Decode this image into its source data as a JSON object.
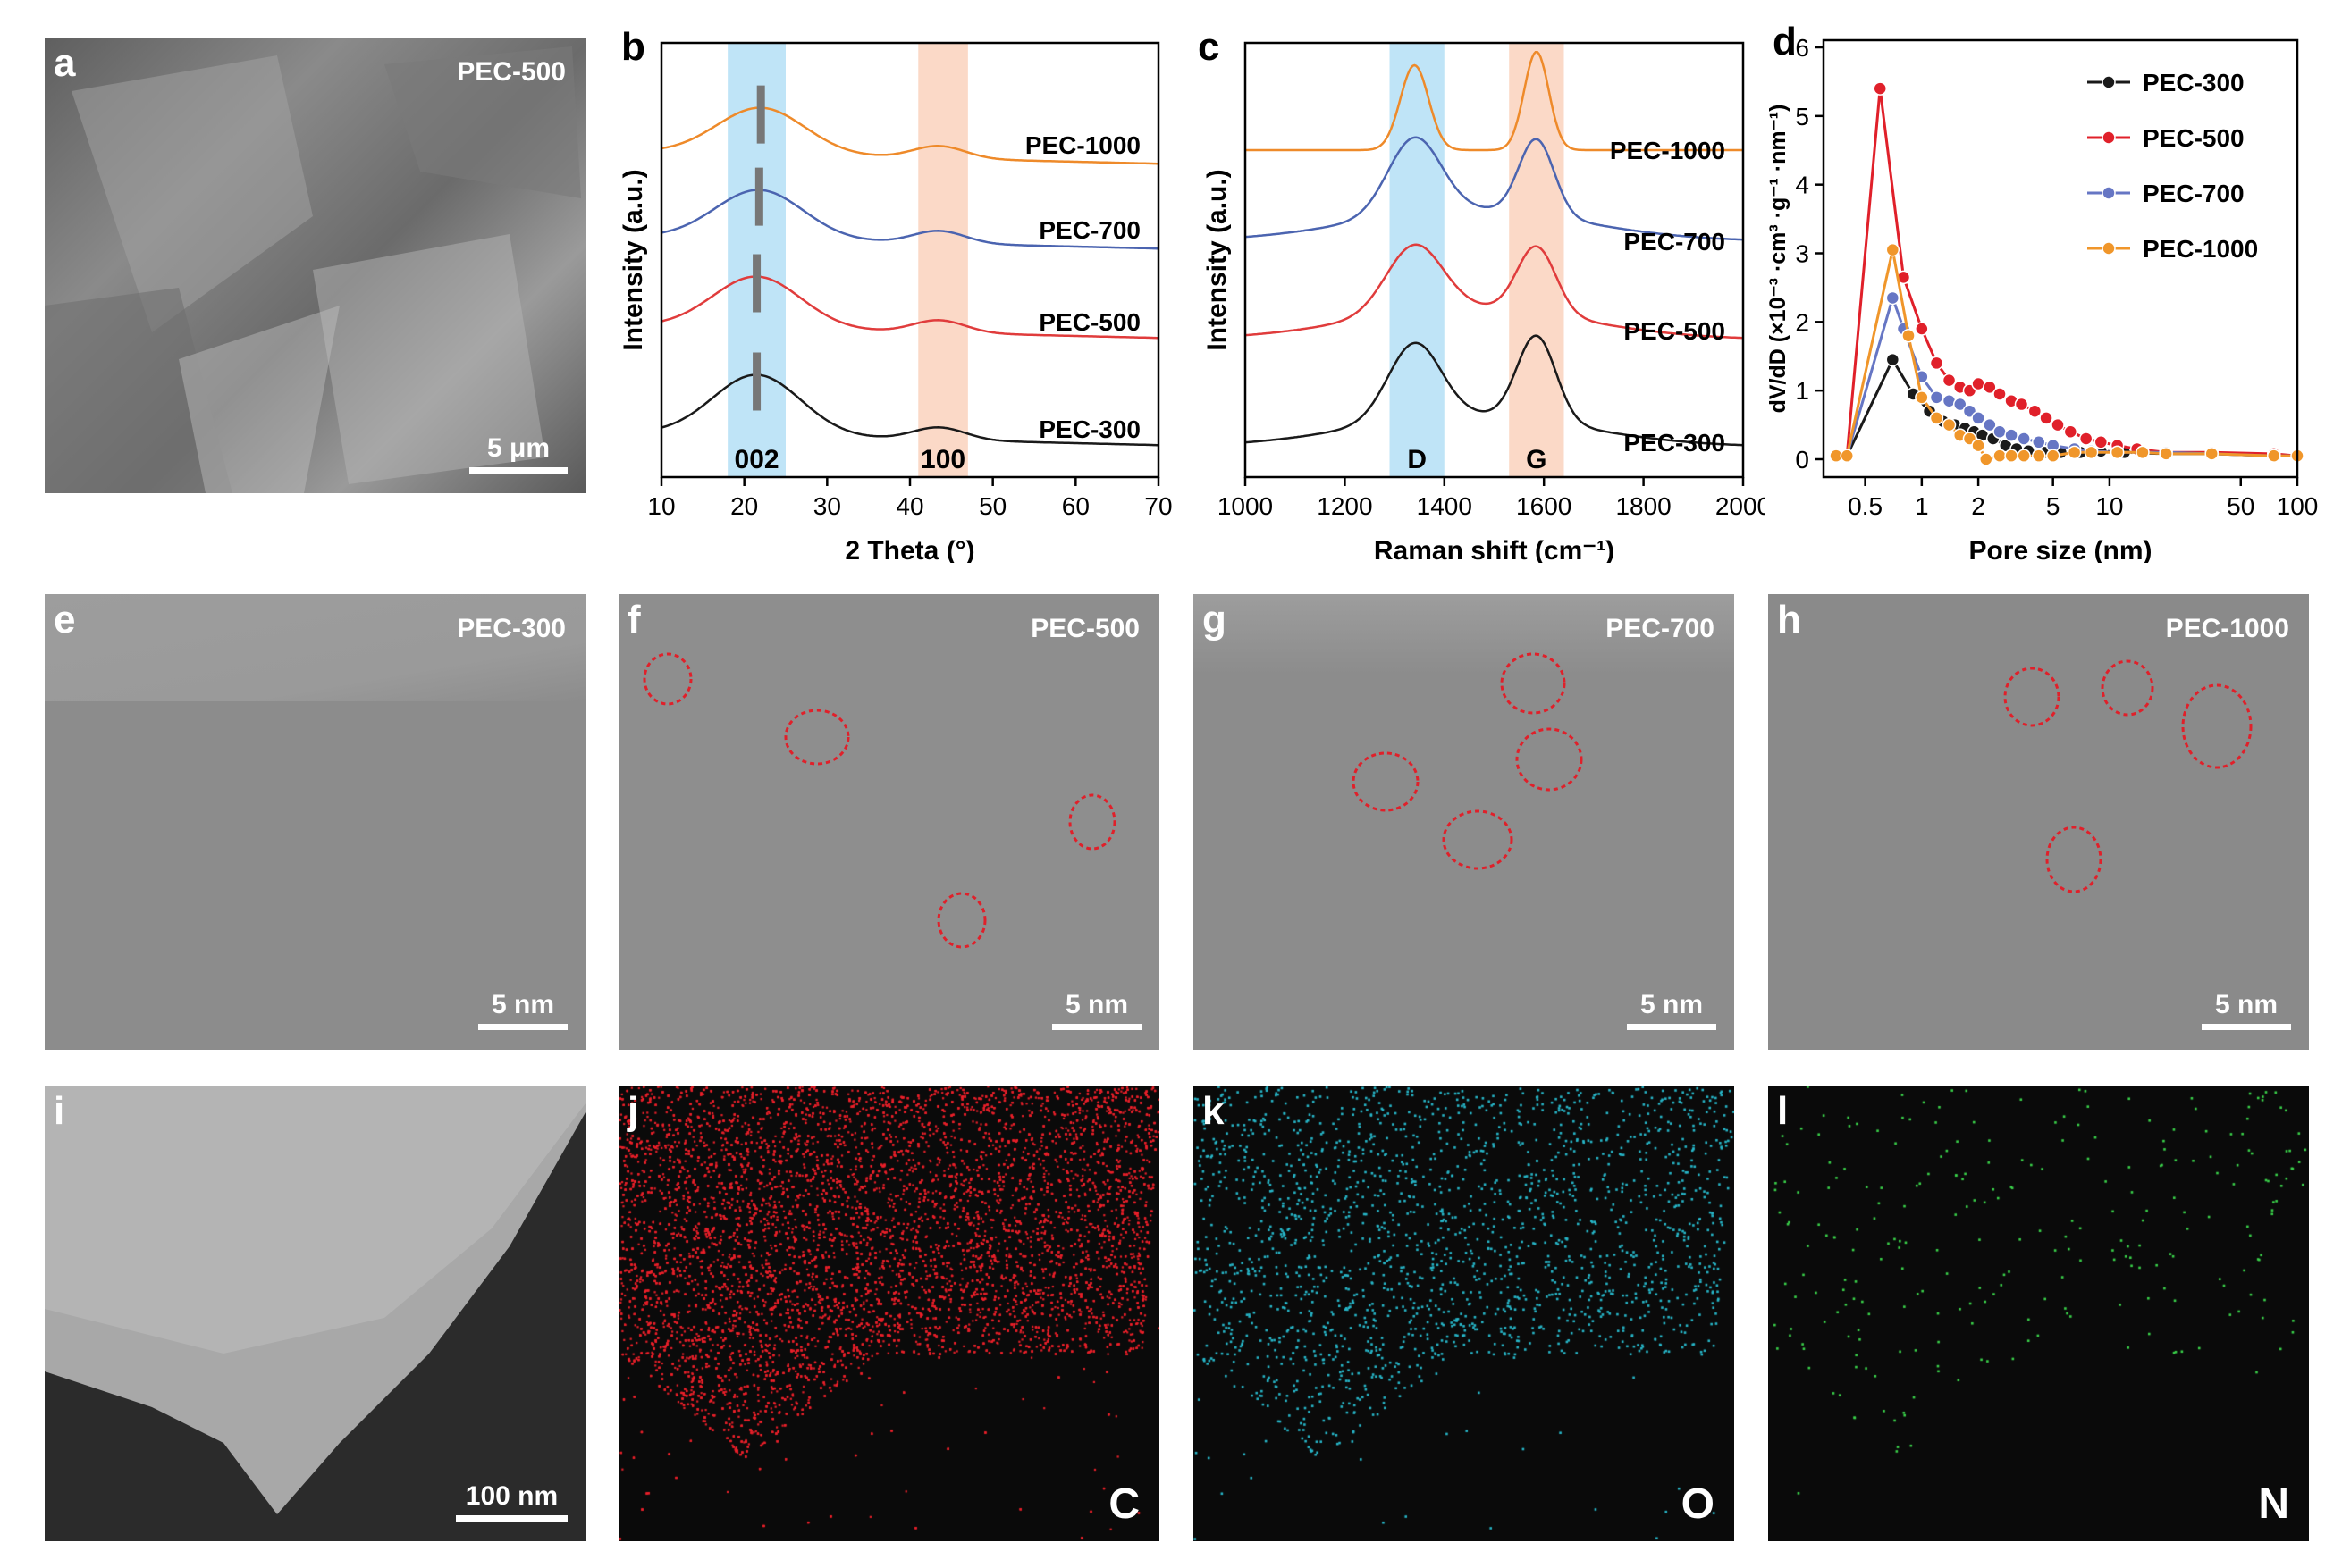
{
  "letters": {
    "a": "a",
    "b": "b",
    "c": "c",
    "d": "d",
    "e": "e",
    "f": "f",
    "g": "g",
    "h": "h",
    "i": "i",
    "j": "j",
    "k": "k",
    "l": "l"
  },
  "panel_a": {
    "sample": "PEC-500",
    "scale": "5 μm"
  },
  "tem": [
    {
      "sample": "PEC-300",
      "scale": "5 nm"
    },
    {
      "sample": "PEC-500",
      "scale": "5 nm"
    },
    {
      "sample": "PEC-700",
      "scale": "5 nm"
    },
    {
      "sample": "PEC-1000",
      "scale": "5 nm"
    }
  ],
  "panel_i": {
    "scale": "100 nm"
  },
  "maps": [
    {
      "element": "C",
      "color": "#e8202a"
    },
    {
      "element": "O",
      "color": "#27b6c8"
    },
    {
      "element": "N",
      "color": "#3ad24a"
    }
  ],
  "chart_data": [
    {
      "type": "line",
      "xlabel": "2 Theta (°)",
      "ylabel": "Intensity (a.u.)",
      "xlim": [
        10,
        70
      ],
      "xticks": [
        10,
        20,
        30,
        40,
        50,
        60,
        70
      ],
      "bands": [
        {
          "label": "002",
          "from": 18,
          "to": 25,
          "color": "#bfe4f7"
        },
        {
          "label": "100",
          "from": 41,
          "to": 47,
          "color": "#fbd9c7"
        }
      ],
      "series": [
        {
          "name": "PEC-300",
          "color": "#1a1a1a",
          "peak002": 21.5
        },
        {
          "name": "PEC-500",
          "color": "#e03c3c",
          "peak002": 21.5
        },
        {
          "name": "PEC-700",
          "color": "#4b64b0",
          "peak002": 21.8
        },
        {
          "name": "PEC-1000",
          "color": "#ee8a2a",
          "peak002": 22.0
        }
      ]
    },
    {
      "type": "line",
      "xlabel": "Raman shift (cm⁻¹)",
      "ylabel": "Intensity (a.u.)",
      "xlim": [
        1000,
        2000
      ],
      "xticks": [
        1000,
        1200,
        1400,
        1600,
        1800,
        2000
      ],
      "bands": [
        {
          "label": "D",
          "from": 1290,
          "to": 1400,
          "color": "#bfe4f7"
        },
        {
          "label": "G",
          "from": 1530,
          "to": 1640,
          "color": "#fbd9c7"
        }
      ],
      "series": [
        {
          "name": "PEC-300",
          "color": "#1a1a1a"
        },
        {
          "name": "PEC-500",
          "color": "#e03c3c"
        },
        {
          "name": "PEC-700",
          "color": "#4b64b0"
        },
        {
          "name": "PEC-1000",
          "color": "#ee8a2a"
        }
      ]
    },
    {
      "type": "line",
      "xscale": "log",
      "xlabel": "Pore size (nm)",
      "ylabel": "dV/dD (×10⁻³ ·cm³ ·g⁻¹ ·nm⁻¹)",
      "xlim": [
        0.3,
        100
      ],
      "ylim": [
        0,
        6
      ],
      "xticks": [
        0.5,
        1,
        2,
        5,
        10,
        50,
        100
      ],
      "xticklabels": [
        "0.5",
        "1",
        "2",
        "5",
        "10",
        "50",
        "100"
      ],
      "yticks": [
        0,
        1,
        2,
        3,
        4,
        5,
        6
      ],
      "legend": "top-right",
      "series": [
        {
          "name": "PEC-300",
          "color": "#1a1a1a",
          "x": [
            0.35,
            0.4,
            0.7,
            0.9,
            1.1,
            1.3,
            1.5,
            1.7,
            1.9,
            2.1,
            2.4,
            2.8,
            3.2,
            3.7,
            4.5,
            5.5,
            7,
            9,
            12,
            20,
            35,
            75,
            100
          ],
          "y": [
            0.05,
            0.05,
            1.45,
            0.95,
            0.7,
            0.55,
            0.5,
            0.45,
            0.4,
            0.35,
            0.3,
            0.2,
            0.15,
            0.12,
            0.1,
            0.1,
            0.1,
            0.12,
            0.1,
            0.08,
            0.08,
            0.05,
            0.05
          ]
        },
        {
          "name": "PEC-500",
          "color": "#e0202a",
          "x": [
            0.35,
            0.4,
            0.6,
            0.8,
            1.0,
            1.2,
            1.4,
            1.6,
            1.8,
            2.0,
            2.3,
            2.6,
            3.0,
            3.4,
            4.0,
            4.6,
            5.3,
            6.2,
            7.5,
            9,
            11,
            14,
            20,
            35,
            75,
            100
          ],
          "y": [
            0.05,
            0.05,
            5.4,
            2.65,
            1.9,
            1.4,
            1.15,
            1.05,
            1.0,
            1.1,
            1.05,
            0.95,
            0.85,
            0.8,
            0.7,
            0.6,
            0.5,
            0.4,
            0.3,
            0.25,
            0.2,
            0.15,
            0.1,
            0.1,
            0.08,
            0.05
          ]
        },
        {
          "name": "PEC-700",
          "color": "#6676c4",
          "x": [
            0.35,
            0.4,
            0.7,
            0.8,
            1.0,
            1.2,
            1.4,
            1.6,
            1.8,
            2.0,
            2.3,
            2.6,
            3.0,
            3.5,
            4.2,
            5.0,
            6.5,
            8,
            11,
            15,
            20,
            35,
            75,
            100
          ],
          "y": [
            0.05,
            0.05,
            2.35,
            1.9,
            1.2,
            0.9,
            0.85,
            0.8,
            0.7,
            0.6,
            0.5,
            0.4,
            0.35,
            0.3,
            0.25,
            0.2,
            0.15,
            0.12,
            0.1,
            0.1,
            0.1,
            0.08,
            0.05,
            0.05
          ]
        },
        {
          "name": "PEC-1000",
          "color": "#f0962a",
          "x": [
            0.35,
            0.4,
            0.7,
            0.85,
            1.0,
            1.2,
            1.4,
            1.6,
            1.8,
            2.0,
            2.2,
            2.6,
            3.0,
            3.5,
            4.2,
            5.0,
            6.5,
            8,
            11,
            15,
            20,
            35,
            75,
            100
          ],
          "y": [
            0.05,
            0.05,
            3.05,
            1.8,
            0.9,
            0.6,
            0.5,
            0.35,
            0.3,
            0.2,
            0.0,
            0.05,
            0.05,
            0.05,
            0.05,
            0.05,
            0.1,
            0.1,
            0.1,
            0.1,
            0.08,
            0.08,
            0.05,
            0.05
          ]
        }
      ]
    }
  ]
}
